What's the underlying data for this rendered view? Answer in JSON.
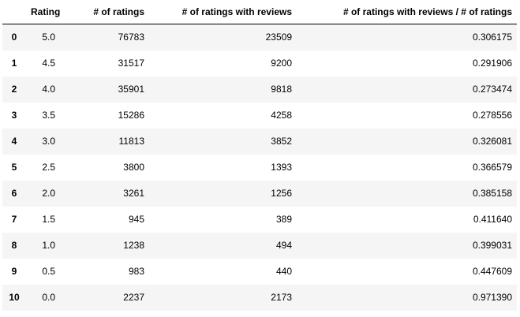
{
  "table": {
    "columns": [
      "",
      "Rating",
      "# of ratings",
      "# of ratings with reviews",
      "# of ratings with reviews / # of ratings"
    ],
    "rows": [
      {
        "index": "0",
        "rating": "5.0",
        "ratings": "76783",
        "reviews": "23509",
        "ratio": "0.306175"
      },
      {
        "index": "1",
        "rating": "4.5",
        "ratings": "31517",
        "reviews": "9200",
        "ratio": "0.291906"
      },
      {
        "index": "2",
        "rating": "4.0",
        "ratings": "35901",
        "reviews": "9818",
        "ratio": "0.273474"
      },
      {
        "index": "3",
        "rating": "3.5",
        "ratings": "15286",
        "reviews": "4258",
        "ratio": "0.278556"
      },
      {
        "index": "4",
        "rating": "3.0",
        "ratings": "11813",
        "reviews": "3852",
        "ratio": "0.326081"
      },
      {
        "index": "5",
        "rating": "2.5",
        "ratings": "3800",
        "reviews": "1393",
        "ratio": "0.366579"
      },
      {
        "index": "6",
        "rating": "2.0",
        "ratings": "3261",
        "reviews": "1256",
        "ratio": "0.385158"
      },
      {
        "index": "7",
        "rating": "1.5",
        "ratings": "945",
        "reviews": "389",
        "ratio": "0.411640"
      },
      {
        "index": "8",
        "rating": "1.0",
        "ratings": "1238",
        "reviews": "494",
        "ratio": "0.399031"
      },
      {
        "index": "9",
        "rating": "0.5",
        "ratings": "983",
        "reviews": "440",
        "ratio": "0.447609"
      },
      {
        "index": "10",
        "rating": "0.0",
        "ratings": "2237",
        "reviews": "2173",
        "ratio": "0.971390"
      }
    ]
  }
}
